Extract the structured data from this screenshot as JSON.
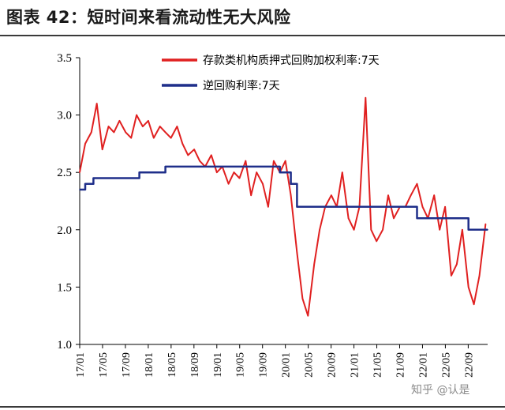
{
  "title": "图表 42：短时间来看流动性无大风险",
  "watermark": "知乎 @认是",
  "colors": {
    "series_dr": "#e02020",
    "series_repo": "#1f2f8a",
    "axis": "#000000"
  },
  "chart_data": {
    "type": "line",
    "y_ticks": [
      "3.5",
      "3.0",
      "2.5",
      "2.0",
      "1.5",
      "1.0"
    ],
    "ylim": [
      1.0,
      3.5
    ],
    "x_ticks": [
      "17/01",
      "17/05",
      "17/09",
      "18/01",
      "18/05",
      "18/09",
      "19/01",
      "19/05",
      "19/09",
      "20/01",
      "20/05",
      "20/09",
      "21/01",
      "21/05",
      "21/09",
      "22/01",
      "22/05",
      "22/09"
    ],
    "xlim": [
      2017.0,
      2022.95
    ],
    "legend_placement": "top-right",
    "series": [
      {
        "name": "存款类机构质押式回购加权利率:7天",
        "color": "#e02020",
        "x": [
          2017.0,
          2017.08,
          2017.17,
          2017.25,
          2017.33,
          2017.42,
          2017.5,
          2017.58,
          2017.67,
          2017.75,
          2017.83,
          2017.92,
          2018.0,
          2018.08,
          2018.17,
          2018.25,
          2018.33,
          2018.42,
          2018.5,
          2018.58,
          2018.67,
          2018.75,
          2018.83,
          2018.92,
          2019.0,
          2019.08,
          2019.17,
          2019.25,
          2019.33,
          2019.42,
          2019.5,
          2019.58,
          2019.67,
          2019.75,
          2019.83,
          2019.92,
          2020.0,
          2020.08,
          2020.17,
          2020.25,
          2020.33,
          2020.42,
          2020.5,
          2020.58,
          2020.67,
          2020.75,
          2020.83,
          2020.92,
          2021.0,
          2021.08,
          2021.17,
          2021.25,
          2021.33,
          2021.42,
          2021.5,
          2021.58,
          2021.67,
          2021.75,
          2021.83,
          2021.92,
          2022.0,
          2022.08,
          2022.17,
          2022.25,
          2022.33,
          2022.42,
          2022.5,
          2022.58,
          2022.67,
          2022.75,
          2022.83,
          2022.92
        ],
        "values": [
          2.5,
          2.75,
          2.85,
          3.1,
          2.7,
          2.9,
          2.85,
          2.95,
          2.85,
          2.8,
          3.0,
          2.9,
          2.95,
          2.8,
          2.9,
          2.85,
          2.8,
          2.9,
          2.75,
          2.65,
          2.7,
          2.6,
          2.55,
          2.65,
          2.5,
          2.55,
          2.4,
          2.5,
          2.45,
          2.6,
          2.3,
          2.5,
          2.4,
          2.2,
          2.6,
          2.5,
          2.6,
          2.3,
          1.8,
          1.4,
          1.25,
          1.7,
          2.0,
          2.2,
          2.3,
          2.2,
          2.5,
          2.1,
          2.0,
          2.2,
          3.15,
          2.0,
          1.9,
          2.0,
          2.3,
          2.1,
          2.2,
          2.2,
          2.3,
          2.4,
          2.2,
          2.1,
          2.3,
          2.0,
          2.2,
          1.6,
          1.7,
          2.0,
          1.5,
          1.35,
          1.6,
          2.05
        ]
      },
      {
        "name": "逆回购利率:7天",
        "color": "#1f2f8a",
        "x": [
          2017.0,
          2017.08,
          2017.08,
          2017.2,
          2017.2,
          2017.87,
          2017.87,
          2018.08,
          2018.08,
          2018.25,
          2018.25,
          2019.92,
          2019.92,
          2020.08,
          2020.08,
          2020.17,
          2020.17,
          2021.92,
          2021.92,
          2022.58,
          2022.58,
          2022.67,
          2022.67,
          2022.95
        ],
        "values": [
          2.35,
          2.35,
          2.4,
          2.4,
          2.45,
          2.45,
          2.5,
          2.5,
          2.5,
          2.5,
          2.55,
          2.55,
          2.5,
          2.5,
          2.4,
          2.4,
          2.2,
          2.2,
          2.1,
          2.1,
          2.1,
          2.1,
          2.0,
          2.0
        ]
      }
    ]
  }
}
